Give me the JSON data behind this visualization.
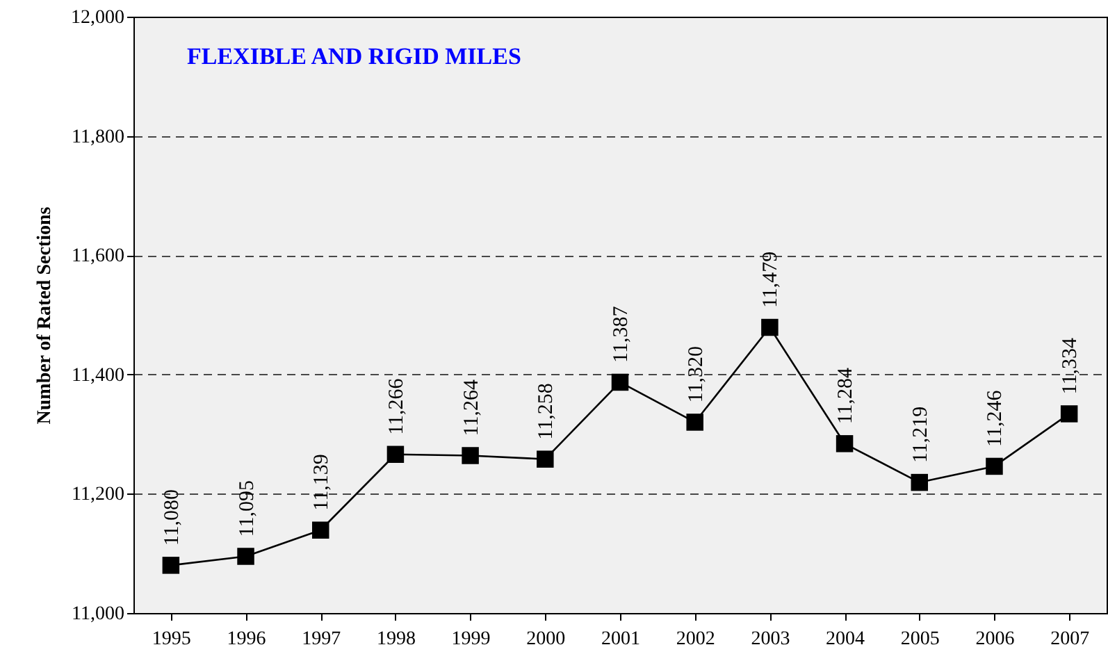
{
  "chart_data": {
    "type": "line",
    "title": "FLEXIBLE AND RIGID MILES",
    "ylabel": "Number of Rated Sections",
    "categories": [
      "1995",
      "1996",
      "1997",
      "1998",
      "1999",
      "2000",
      "2001",
      "2002",
      "2003",
      "2004",
      "2005",
      "2006",
      "2007"
    ],
    "series": [
      {
        "color": "#000000",
        "values": [
          11080,
          11095,
          11139,
          11266,
          11264,
          11258,
          11387,
          11320,
          11479,
          11284,
          11219,
          11246,
          11334
        ],
        "value_labels": [
          "11,080",
          "11,095",
          "11,139",
          "11,266",
          "11,264",
          "11,258",
          "11,387",
          "11,320",
          "11,479",
          "11,284",
          "11,219",
          "11,246",
          "11,334"
        ]
      }
    ],
    "ylim": [
      11000,
      12000
    ],
    "yticks": [
      {
        "value": 11000,
        "label": "11,000"
      },
      {
        "value": 11200,
        "label": "11,200"
      },
      {
        "value": 11400,
        "label": "11,400"
      },
      {
        "value": 11600,
        "label": "11,600"
      },
      {
        "value": 11800,
        "label": "11,800"
      },
      {
        "value": 12000,
        "label": "12,000"
      }
    ],
    "grid": "y",
    "marker": "square",
    "line_style": "solid"
  }
}
